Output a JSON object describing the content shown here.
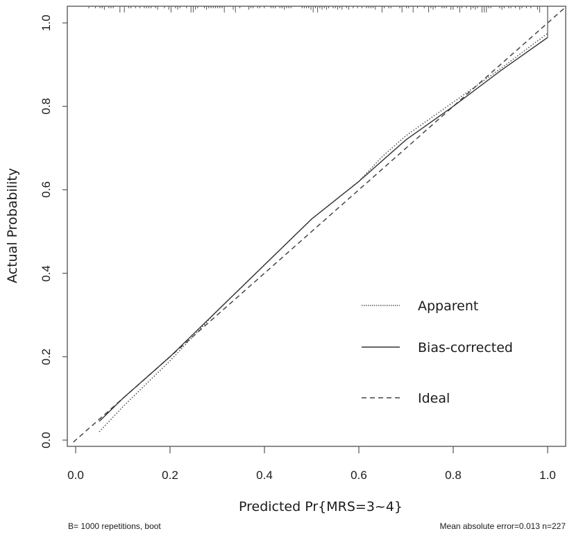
{
  "chart_data": {
    "type": "line",
    "title": "",
    "xlabel": "Predicted Pr{MRS=3~4}",
    "ylabel": "Actual Probability",
    "xlim": [
      0,
      1
    ],
    "ylim": [
      0,
      1
    ],
    "x_ticks": [
      "0.0",
      "0.2",
      "0.4",
      "0.6",
      "0.8",
      "1.0"
    ],
    "y_ticks": [
      "0.0",
      "0.2",
      "0.4",
      "0.6",
      "0.8",
      "1.0"
    ],
    "grid": false,
    "legend_position": "lower right (inside plot)",
    "series": [
      {
        "name": "Apparent",
        "style": "dotted",
        "x": [
          0.05,
          0.1,
          0.2,
          0.3,
          0.4,
          0.5,
          0.6,
          0.65,
          0.7,
          0.8,
          0.9,
          1.0
        ],
        "y": [
          0.02,
          0.08,
          0.19,
          0.31,
          0.42,
          0.53,
          0.62,
          0.68,
          0.73,
          0.81,
          0.89,
          0.975
        ]
      },
      {
        "name": "Bias-corrected",
        "style": "solid",
        "x": [
          0.05,
          0.1,
          0.2,
          0.3,
          0.4,
          0.5,
          0.6,
          0.65,
          0.7,
          0.8,
          0.9,
          1.0
        ],
        "y": [
          0.045,
          0.1,
          0.2,
          0.31,
          0.42,
          0.53,
          0.62,
          0.67,
          0.72,
          0.8,
          0.885,
          0.965
        ]
      },
      {
        "name": "Ideal",
        "style": "dashed",
        "x": [
          0.0,
          1.0
        ],
        "y": [
          0.0,
          1.0
        ]
      }
    ],
    "rug": "tick marks along top axis showing distribution of predicted probabilities",
    "annotations": [
      "B= 1000 repetitions, boot",
      "Mean absolute error=0.013 n=227"
    ]
  },
  "legend": {
    "items": [
      {
        "label": "Apparent",
        "style": "dotted"
      },
      {
        "label": "Bias-corrected",
        "style": "solid"
      },
      {
        "label": "Ideal",
        "style": "dashed"
      }
    ]
  },
  "axes": {
    "x_title": "Predicted Pr{MRS=3~4}",
    "y_title": "Actual Probability",
    "x_ticks": [
      "0.0",
      "0.2",
      "0.4",
      "0.6",
      "0.8",
      "1.0"
    ],
    "y_ticks": [
      "0.0",
      "0.2",
      "0.4",
      "0.6",
      "0.8",
      "1.0"
    ]
  },
  "footer": {
    "left": "B= 1000 repetitions, boot",
    "right": "Mean absolute error=0.013 n=227"
  },
  "colors": {
    "line": "#333333",
    "axis": "#555555",
    "text": "#1a1a1a"
  }
}
